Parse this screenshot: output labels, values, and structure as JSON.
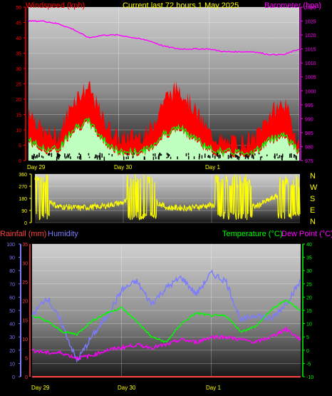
{
  "header": {
    "left_title": "Windspeed (kph)",
    "center_title": "Current last 72 hours 1 May 2025",
    "right_title": "Barometer (hpa)"
  },
  "days": [
    "Day 29",
    "Day 30",
    "Day 1"
  ],
  "wind_dir_letters": [
    "N",
    "W",
    "S",
    "E",
    "N"
  ],
  "lower_header": {
    "rainfall": "Rainfall (mm)",
    "humidity": "Humidity",
    "temperature": "Temperature (°C)",
    "dewpoint": "Dew Point (°C)"
  },
  "colors": {
    "windspeed": "#ff0000",
    "barometer": "#ff00ff",
    "title": "#ffff00",
    "wind_avg": "#00ff00",
    "wind_low": "#bfffbf",
    "direction": "#ffff00",
    "rainfall": "#ff4040",
    "humidity": "#7b7bff",
    "temperature": "#00ff00",
    "dewpoint": "#ff00ff"
  },
  "chart_data": [
    {
      "type": "area",
      "title": "Current last 72 hours 1 May 2025",
      "ylabel": "Windspeed (kph)",
      "y2label": "Barometer (hpa)",
      "ylim": [
        0,
        50
      ],
      "y2lim": [
        975,
        1030
      ],
      "y_ticks": [
        0,
        5,
        10,
        15,
        20,
        25,
        30,
        35,
        40,
        45,
        50
      ],
      "y2_ticks": [
        975,
        980,
        985,
        990,
        995,
        1000,
        1005,
        1010,
        1015,
        1020,
        1025,
        1030
      ],
      "x_ticks": [
        "Day 29",
        "Day 30",
        "Day 1"
      ],
      "series": [
        {
          "name": "Windspeed (kph)",
          "kind": "gust",
          "x": [
            0,
            4,
            8,
            12,
            16,
            20,
            24,
            28,
            32,
            36,
            40,
            44,
            48,
            52,
            56,
            60,
            64,
            68,
            72
          ],
          "values": [
            17,
            9,
            8,
            20,
            24,
            13,
            7,
            8,
            9,
            20,
            24,
            17,
            9,
            6,
            6,
            7,
            15,
            19,
            5
          ]
        },
        {
          "name": "Windspeed (kph)",
          "kind": "average",
          "x": [
            0,
            4,
            8,
            12,
            16,
            20,
            24,
            28,
            32,
            36,
            40,
            44,
            48,
            52,
            56,
            60,
            64,
            68,
            72
          ],
          "values": [
            6,
            3,
            3,
            10,
            12,
            6,
            2,
            2,
            3,
            8,
            10,
            7,
            3,
            2,
            2,
            2,
            6,
            8,
            2
          ]
        },
        {
          "name": "Barometer (hpa)",
          "x": [
            0,
            4,
            8,
            12,
            16,
            20,
            24,
            28,
            32,
            36,
            40,
            44,
            48,
            52,
            56,
            60,
            64,
            68,
            72
          ],
          "values": [
            1025,
            1025,
            1024,
            1022,
            1019,
            1020,
            1020,
            1019,
            1018,
            1016,
            1015,
            1015,
            1015,
            1014,
            1014,
            1014,
            1013,
            1013,
            1015
          ]
        }
      ]
    },
    {
      "type": "line",
      "ylim": [
        0,
        360
      ],
      "y_ticks": [
        0,
        90,
        180,
        270,
        360
      ],
      "labels": [
        "N",
        "W",
        "S",
        "E",
        "N"
      ],
      "series": [
        {
          "name": "Wind direction",
          "x": [
            0,
            6,
            12,
            18,
            24,
            30,
            36,
            42,
            48,
            54,
            60,
            66,
            72
          ],
          "values": [
            250,
            120,
            110,
            120,
            150,
            200,
            110,
            110,
            130,
            110,
            120,
            200,
            250
          ]
        }
      ]
    },
    {
      "type": "line",
      "x_ticks": [
        "Day 29",
        "Day 30",
        "Day 1"
      ],
      "rain_ylim": [
        0,
        35
      ],
      "humidity_ylim": [
        0,
        100
      ],
      "temp_ylim": [
        -10,
        40
      ],
      "rain_ticks": [
        0,
        5,
        10,
        15,
        20,
        25,
        30,
        35
      ],
      "humidity_ticks": [
        0,
        10,
        20,
        30,
        40,
        50,
        60,
        70,
        80,
        90,
        100
      ],
      "temp_ticks": [
        -10,
        -5,
        0,
        5,
        10,
        15,
        20,
        25,
        30,
        35,
        40
      ],
      "series": [
        {
          "name": "Rainfall (mm)",
          "x": [
            0,
            72
          ],
          "values": [
            0,
            0
          ]
        },
        {
          "name": "Humidity",
          "x": [
            0,
            4,
            8,
            12,
            16,
            20,
            24,
            28,
            32,
            36,
            40,
            44,
            48,
            52,
            56,
            60,
            64,
            68,
            72
          ],
          "values": [
            46,
            60,
            40,
            12,
            30,
            45,
            65,
            72,
            55,
            67,
            75,
            62,
            78,
            72,
            42,
            47,
            43,
            55,
            72
          ]
        },
        {
          "name": "Temperature (°C)",
          "x": [
            0,
            4,
            8,
            12,
            16,
            20,
            24,
            28,
            32,
            36,
            40,
            44,
            48,
            52,
            56,
            60,
            64,
            68,
            72
          ],
          "values": [
            13,
            11,
            7,
            6,
            11,
            14,
            16,
            11,
            5,
            3,
            10,
            14,
            13,
            13,
            7,
            9,
            15,
            19,
            15
          ]
        },
        {
          "name": "Dew Point (°C)",
          "x": [
            0,
            4,
            8,
            12,
            16,
            20,
            24,
            28,
            32,
            36,
            40,
            44,
            48,
            52,
            56,
            60,
            64,
            68,
            72
          ],
          "values": [
            0,
            -1,
            -1,
            -3,
            -2,
            0,
            1,
            2,
            1,
            2,
            4,
            3,
            5,
            5,
            4,
            3,
            5,
            8,
            4
          ]
        }
      ]
    }
  ]
}
